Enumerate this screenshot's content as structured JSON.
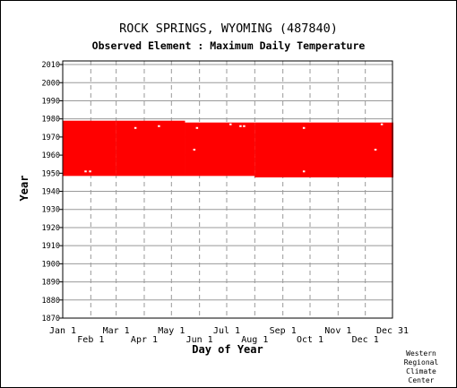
{
  "title": "ROCK SPRINGS, WYOMING   (487840)",
  "subtitle": "Observed Element : Maximum Daily Temperature",
  "credit": [
    "Western",
    "Regional",
    "Climate",
    "Center"
  ],
  "chart_data": {
    "type": "heatmap",
    "xlabel": "Day of Year",
    "ylabel": "Year",
    "xlim": [
      1,
      365
    ],
    "ylim": [
      1870,
      2012
    ],
    "x_ticks_top_row": [
      {
        "label": "Jan 1",
        "day": 1
      },
      {
        "label": "Mar 1",
        "day": 60
      },
      {
        "label": "May 1",
        "day": 121
      },
      {
        "label": "Jul 1",
        "day": 182
      },
      {
        "label": "Sep 1",
        "day": 244
      },
      {
        "label": "Nov 1",
        "day": 305
      },
      {
        "label": "Dec 31",
        "day": 365
      }
    ],
    "x_ticks_bottom_row": [
      {
        "label": "Feb 1",
        "day": 32
      },
      {
        "label": "Apr 1",
        "day": 91
      },
      {
        "label": "Jun 1",
        "day": 152
      },
      {
        "label": "Aug 1",
        "day": 213
      },
      {
        "label": "Oct 1",
        "day": 274
      },
      {
        "label": "Dec 1",
        "day": 335
      }
    ],
    "y_ticks": [
      1870,
      1880,
      1890,
      1900,
      1910,
      1920,
      1930,
      1940,
      1950,
      1960,
      1970,
      1980,
      1990,
      2000,
      2010
    ],
    "grid": true,
    "data_color": "#ff0000",
    "coverage_blocks": [
      {
        "start_day": 1,
        "end_day": 59,
        "start_year": 1948.5,
        "end_year": 1979
      },
      {
        "start_day": 60,
        "end_day": 135,
        "start_year": 1948.5,
        "end_year": 1979
      },
      {
        "start_day": 136,
        "end_day": 212,
        "start_year": 1948.5,
        "end_year": 1978
      },
      {
        "start_day": 213,
        "end_day": 365,
        "start_year": 1947.7,
        "end_year": 1978
      }
    ],
    "missing_points": [
      {
        "day": 25,
        "year": 1951
      },
      {
        "day": 30,
        "year": 1951
      },
      {
        "day": 80,
        "year": 1975
      },
      {
        "day": 106,
        "year": 1976
      },
      {
        "day": 145,
        "year": 1963
      },
      {
        "day": 148,
        "year": 1975
      },
      {
        "day": 185,
        "year": 1977
      },
      {
        "day": 196,
        "year": 1976
      },
      {
        "day": 200,
        "year": 1976
      },
      {
        "day": 266,
        "year": 1975
      },
      {
        "day": 266,
        "year": 1951
      },
      {
        "day": 345,
        "year": 1963
      },
      {
        "day": 352,
        "year": 1977
      }
    ]
  }
}
